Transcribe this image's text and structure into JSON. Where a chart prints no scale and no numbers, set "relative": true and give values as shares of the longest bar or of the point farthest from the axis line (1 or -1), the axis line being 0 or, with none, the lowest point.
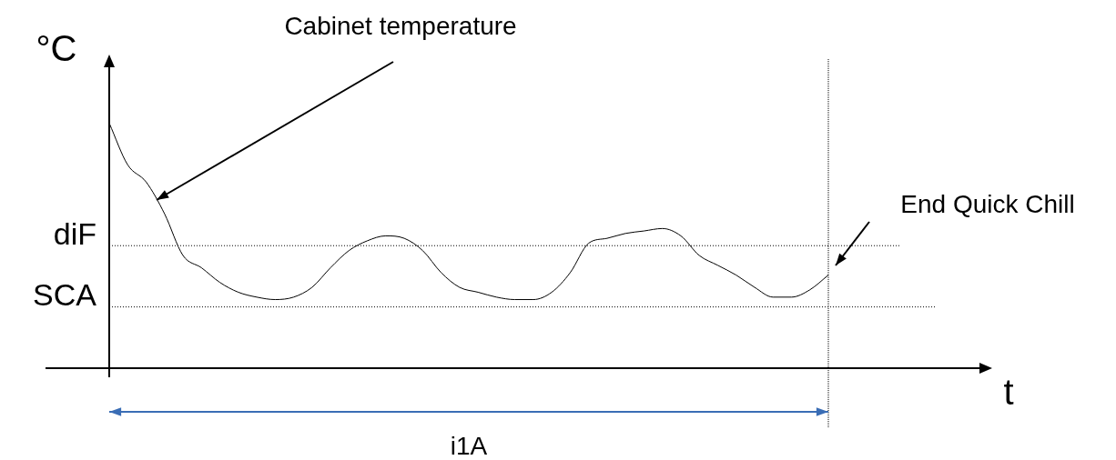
{
  "chart_data": {
    "type": "line",
    "relative": true,
    "xlabel": "t",
    "ylabel": "°C",
    "marker": "none",
    "grid": false,
    "legend": false,
    "tick_labels": false,
    "categories": [
      null,
      null,
      null,
      null,
      null,
      null,
      null,
      null,
      null,
      null,
      null,
      null,
      null,
      null,
      null,
      null,
      null,
      null,
      null,
      null,
      null,
      null,
      null,
      null,
      null,
      null,
      null,
      null,
      null,
      null,
      null,
      null,
      null,
      null,
      null,
      null,
      null,
      null,
      null,
      null
    ],
    "series": [
      {
        "color": "#000000",
        "values": [
          1.0,
          0.83,
          0.76,
          0.63,
          0.46,
          0.41,
          0.35,
          0.31,
          0.29,
          0.28,
          0.29,
          0.33,
          0.41,
          0.48,
          0.52,
          0.54,
          0.53,
          0.48,
          0.39,
          0.33,
          0.31,
          0.29,
          0.28,
          0.28,
          0.31,
          0.39,
          0.51,
          0.53,
          0.55,
          0.56,
          0.57,
          0.54,
          0.46,
          0.42,
          0.38,
          0.33,
          0.29,
          0.29,
          0.32,
          0.38
        ]
      }
    ],
    "ref_lines": [
      {
        "axis": "y",
        "value": 0.5,
        "label": "diF",
        "line_style": "dotted"
      },
      {
        "axis": "y",
        "value": 0.25,
        "label": "SCA",
        "line_style": "dotted"
      }
    ],
    "annotations": [
      "Cabinet temperature",
      "End Quick Chill",
      "i1A"
    ]
  }
}
